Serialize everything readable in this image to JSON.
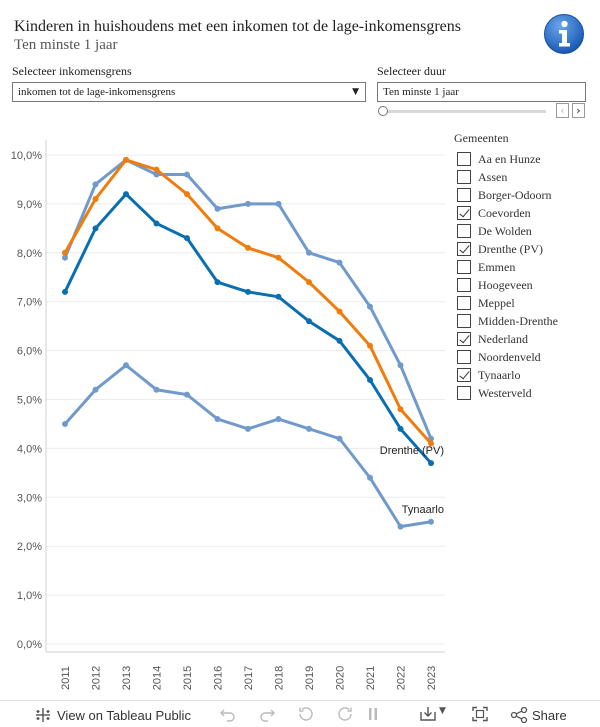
{
  "header": {
    "title": "Kinderen in huishoudens met een inkomen tot de lage-inkomensgrens",
    "subtitle": "Ten minste 1 jaar"
  },
  "filters": {
    "income_label": "Selecteer inkomensgrens",
    "income_value": "inkomen tot de lage-inkomensgrens",
    "duration_label": "Selecteer duur",
    "duration_value": "Ten minste 1 jaar"
  },
  "legend": {
    "title": "Gemeenten",
    "items": [
      {
        "label": "Aa en Hunze",
        "checked": false
      },
      {
        "label": "Assen",
        "checked": false
      },
      {
        "label": "Borger-Odoorn",
        "checked": false
      },
      {
        "label": "Coevorden",
        "checked": true
      },
      {
        "label": "De Wolden",
        "checked": false
      },
      {
        "label": "Drenthe (PV)",
        "checked": true
      },
      {
        "label": "Emmen",
        "checked": false
      },
      {
        "label": "Hoogeveen",
        "checked": false
      },
      {
        "label": "Meppel",
        "checked": false
      },
      {
        "label": "Midden-Drenthe",
        "checked": false
      },
      {
        "label": "Nederland",
        "checked": true
      },
      {
        "label": "Noordenveld",
        "checked": false
      },
      {
        "label": "Tynaarlo",
        "checked": true
      },
      {
        "label": "Westerveld",
        "checked": false
      }
    ]
  },
  "chart_data": {
    "type": "line",
    "x": [
      "2011",
      "2012",
      "2013",
      "2014",
      "2015",
      "2016",
      "2017",
      "2018",
      "2019",
      "2020",
      "2021",
      "2022",
      "2023"
    ],
    "ylim": [
      0,
      10
    ],
    "yticks": [
      "0,0%",
      "1,0%",
      "2,0%",
      "3,0%",
      "4,0%",
      "5,0%",
      "6,0%",
      "7,0%",
      "8,0%",
      "9,0%",
      "10,0%"
    ],
    "grid": true,
    "series": [
      {
        "name": "Coevorden",
        "color": "#7099cc",
        "values": [
          7.9,
          9.4,
          9.9,
          9.6,
          9.6,
          8.9,
          9.0,
          9.0,
          8.0,
          7.8,
          6.9,
          5.7,
          4.2
        ]
      },
      {
        "name": "Nederland",
        "color": "#ef7d0e",
        "values": [
          8.0,
          9.1,
          9.9,
          9.7,
          9.2,
          8.5,
          8.1,
          7.9,
          7.4,
          6.8,
          6.1,
          4.8,
          4.1
        ]
      },
      {
        "name": "Drenthe (PV)",
        "color": "#0a6fb0",
        "values": [
          7.2,
          8.5,
          9.2,
          8.6,
          8.3,
          7.4,
          7.2,
          7.1,
          6.6,
          6.2,
          5.4,
          4.4,
          3.7
        ],
        "end_label": "Drenthe (PV)"
      },
      {
        "name": "Tynaarlo",
        "color": "#7099cc",
        "values": [
          4.5,
          5.2,
          5.7,
          5.2,
          5.1,
          4.6,
          4.4,
          4.6,
          4.4,
          4.2,
          3.4,
          2.4,
          2.5
        ],
        "end_label": "Tynaarlo"
      }
    ]
  },
  "toolbar": {
    "view_label": "View on Tableau Public",
    "share_label": "Share"
  }
}
